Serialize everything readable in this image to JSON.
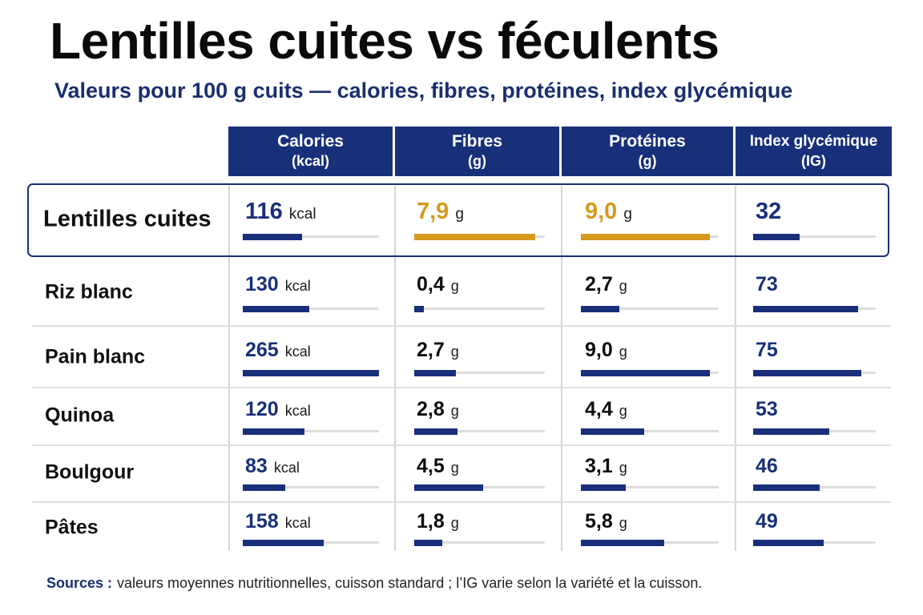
{
  "title": "Lentilles cuites vs féculents",
  "subtitle": "Valeurs pour 100 g cuits — calories, fibres, protéines, index glycémique",
  "colors": {
    "navy": "#18307a",
    "highlight": "#d69a1e"
  },
  "chart_data": {
    "type": "table",
    "columns": [
      {
        "key": "kcal",
        "label": "Calories",
        "unit_label": "(kcal)",
        "value_unit": "kcal",
        "max": 265
      },
      {
        "key": "fibres",
        "label": "Fibres",
        "unit_label": "(g)",
        "value_unit": "g",
        "max": 8.5
      },
      {
        "key": "proteines",
        "label": "Protéines",
        "unit_label": "(g)",
        "value_unit": "g",
        "max": 9.6
      },
      {
        "key": "ig",
        "label": "Index glycémique",
        "unit_label": "(IG)",
        "value_unit": "",
        "max": 85
      }
    ],
    "rows": [
      {
        "name": "Lentilles cuites",
        "highlight": true,
        "values": {
          "kcal": 116,
          "fibres": 7.9,
          "proteines": 9.0,
          "ig": 32
        },
        "display": {
          "kcal": "116",
          "fibres": "7,9",
          "proteines": "9,0",
          "ig": "32"
        }
      },
      {
        "name": "Riz blanc",
        "highlight": false,
        "values": {
          "kcal": 130,
          "fibres": 0.4,
          "proteines": 2.7,
          "ig": 73
        },
        "display": {
          "kcal": "130",
          "fibres": "0,4",
          "proteines": "2,7",
          "ig": "73"
        }
      },
      {
        "name": "Pain blanc",
        "highlight": false,
        "values": {
          "kcal": 265,
          "fibres": 2.7,
          "proteines": 9.0,
          "ig": 75
        },
        "display": {
          "kcal": "265",
          "fibres": "2,7",
          "proteines": "9,0",
          "ig": "75"
        }
      },
      {
        "name": "Quinoa",
        "highlight": false,
        "values": {
          "kcal": 120,
          "fibres": 2.8,
          "proteines": 4.4,
          "ig": 53
        },
        "display": {
          "kcal": "120",
          "fibres": "2,8",
          "proteines": "4,4",
          "ig": "53"
        }
      },
      {
        "name": "Boulgour",
        "highlight": false,
        "values": {
          "kcal": 83,
          "fibres": 4.5,
          "proteines": 3.1,
          "ig": 46
        },
        "display": {
          "kcal": "83",
          "fibres": "4,5",
          "proteines": "3,1",
          "ig": "46"
        }
      },
      {
        "name": "Pâtes",
        "highlight": false,
        "values": {
          "kcal": 158,
          "fibres": 1.8,
          "proteines": 5.8,
          "ig": 49
        },
        "display": {
          "kcal": "158",
          "fibres": "1,8",
          "proteines": "5,8",
          "ig": "49"
        }
      }
    ]
  },
  "sources": {
    "label": "Sources :",
    "text": "valeurs moyennes nutritionnelles, cuisson standard ; l’IG varie selon la variété et la cuisson."
  }
}
